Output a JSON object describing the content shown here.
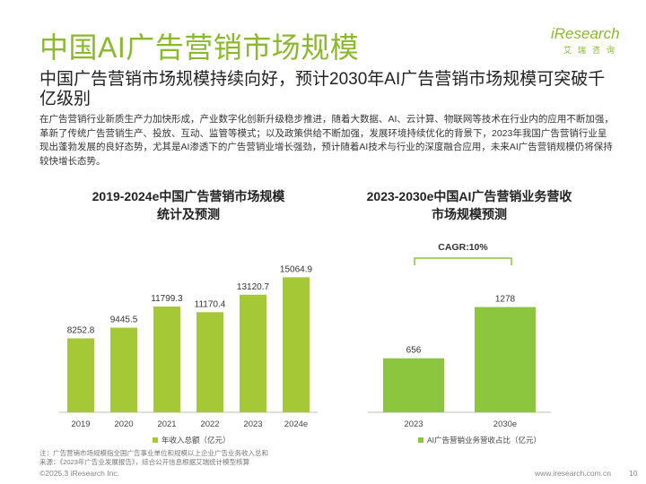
{
  "header": {
    "title": "中国AI广告营销市场规模",
    "logo_word": "iResearch",
    "logo_sub": "艾瑞咨询"
  },
  "subtitle": "中国广告营销市场规模持续向好，预计2030年AI广告营销市场规模可突破千亿级别",
  "body": "在广告营销行业新质生产力加快形成，产业数字化创新升级稳步推进，随着大数据、AI、云计算、物联网等技术在行业内的应用不断加强，革新了传统广告营销生产、投放、互动、监管等模式；以及政策供给不断加强，发展环境持续优化的背景下，2023年我国广告营销行业呈现出蓬勃发展的良好态势，尤其是AI渗透下的广告营销业增长强劲，预计随着AI技术与行业的深度融合应用，未来AI广告营销规模仍将保持较快增长态势。",
  "chart_data": [
    {
      "type": "bar",
      "title": "2019-2024e中国广告营销市场规模统计及预测",
      "title_lines": [
        "2019-2024e中国广告营销市场规模",
        "统计及预测"
      ],
      "categories": [
        "2019",
        "2020",
        "2021",
        "2022",
        "2023",
        "2024e"
      ],
      "series": [
        {
          "name": "年收入总额（亿元）",
          "values": [
            8252.8,
            9445.5,
            11799.3,
            11170.4,
            13120.7,
            15064.9
          ]
        }
      ],
      "value_labels": [
        "8252.8",
        "9445.5",
        "11799.3",
        "11170.4",
        "13120.7",
        "15064.9"
      ],
      "ylim": [
        0,
        17000
      ],
      "xlabel": "",
      "ylabel": "",
      "grid": false,
      "legend": "bottom",
      "color": "#a5c936"
    },
    {
      "type": "bar",
      "title": "2023-2030e中国AI广告营销业务营收市场规模预测",
      "title_lines": [
        "2023-2030e中国AI广告营销业务营收",
        "市场规模预测"
      ],
      "categories": [
        "2023",
        "2030e"
      ],
      "series": [
        {
          "name": "AI广告营销业务营收占比（亿元）",
          "values": [
            656,
            1278
          ]
        }
      ],
      "value_labels": [
        "656",
        "1278"
      ],
      "annotation": "CAGR:10%",
      "ylim": [
        0,
        1600
      ],
      "xlabel": "",
      "ylabel": "",
      "grid": false,
      "legend": "bottom",
      "color": "#8cc63f"
    }
  ],
  "footer": {
    "note1": "注：广告营销市场规模指全国广告事业单位和规模以上企业广告业务收入总和",
    "note2": "来源：《2023年广告业发展报告》，综合公开信息根据艾瑞统计模型核算",
    "copyright": "©2025.3 iResearch Inc.",
    "website": "www.iresearch.com.cn",
    "page": "10"
  }
}
